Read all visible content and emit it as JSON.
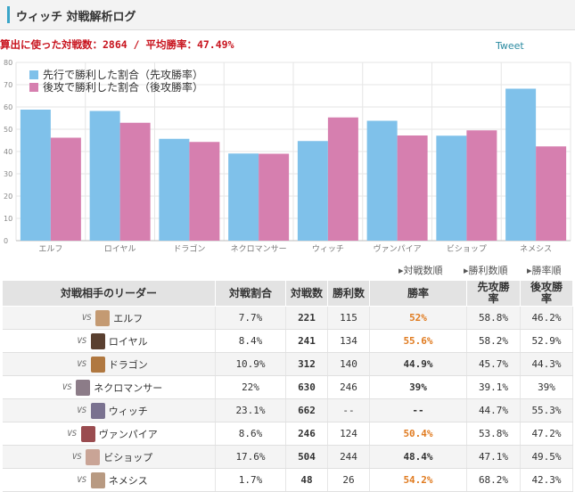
{
  "header": {
    "title": "ウィッチ 対戦解析ログ"
  },
  "summary": {
    "text": "算出に使った対戦数：2864 / 平均勝率：47.49%"
  },
  "tweet_label": "Tweet",
  "colors": {
    "first": "#7fc1ea",
    "second": "#d67faf",
    "header_accent": "#3aa5c8"
  },
  "chart_data": {
    "type": "bar",
    "categories": [
      "エルフ",
      "ロイヤル",
      "ドラゴン",
      "ネクロマンサー",
      "ウィッチ",
      "ヴァンパイア",
      "ビショップ",
      "ネメシス"
    ],
    "series": [
      {
        "name": "先行で勝利した割合（先攻勝率）",
        "values": [
          58.8,
          58.2,
          45.7,
          39.1,
          44.7,
          53.8,
          47.1,
          68.2
        ]
      },
      {
        "name": "後攻で勝利した割合（後攻勝率）",
        "values": [
          46.2,
          52.9,
          44.3,
          39,
          55.3,
          47.2,
          49.5,
          42.3
        ]
      }
    ],
    "yticks": [
      0,
      10,
      20,
      30,
      40,
      50,
      60,
      70,
      80
    ],
    "ylim": [
      0,
      80
    ],
    "grid": true,
    "legend_position": "top-left"
  },
  "sort_links": [
    "▸対戦数順",
    "▸勝利数順",
    "▸勝率順"
  ],
  "table": {
    "headers": [
      "対戦相手のリーダー",
      "対戦割合",
      "対戦数",
      "勝利数",
      "勝率",
      "先攻勝\n率",
      "後攻勝\n率"
    ],
    "vs_label": "VS",
    "rows": [
      {
        "leader": "エルフ",
        "ratio": "7.7%",
        "matches": "221",
        "wins": "115",
        "winrate": "52%",
        "highlight": true,
        "first": "58.8%",
        "second": "46.2%",
        "avatar": "#c49a72"
      },
      {
        "leader": "ロイヤル",
        "ratio": "8.4%",
        "matches": "241",
        "wins": "134",
        "winrate": "55.6%",
        "highlight": true,
        "first": "58.2%",
        "second": "52.9%",
        "avatar": "#5a4030"
      },
      {
        "leader": "ドラゴン",
        "ratio": "10.9%",
        "matches": "312",
        "wins": "140",
        "winrate": "44.9%",
        "highlight": false,
        "first": "45.7%",
        "second": "44.3%",
        "avatar": "#b07840"
      },
      {
        "leader": "ネクロマンサー",
        "ratio": "22%",
        "matches": "630",
        "wins": "246",
        "winrate": "39%",
        "highlight": false,
        "first": "39.1%",
        "second": "39%",
        "avatar": "#8c7c88"
      },
      {
        "leader": "ウィッチ",
        "ratio": "23.1%",
        "matches": "662",
        "wins": "--",
        "winrate": "--",
        "highlight": false,
        "first": "44.7%",
        "second": "55.3%",
        "avatar": "#7a7290"
      },
      {
        "leader": "ヴァンパイア",
        "ratio": "8.6%",
        "matches": "246",
        "wins": "124",
        "winrate": "50.4%",
        "highlight": true,
        "first": "53.8%",
        "second": "47.2%",
        "avatar": "#9a4c50"
      },
      {
        "leader": "ビショップ",
        "ratio": "17.6%",
        "matches": "504",
        "wins": "244",
        "winrate": "48.4%",
        "highlight": false,
        "first": "47.1%",
        "second": "49.5%",
        "avatar": "#c9a496"
      },
      {
        "leader": "ネメシス",
        "ratio": "1.7%",
        "matches": "48",
        "wins": "26",
        "winrate": "54.2%",
        "highlight": true,
        "first": "68.2%",
        "second": "42.3%",
        "avatar": "#b89a82"
      }
    ]
  }
}
